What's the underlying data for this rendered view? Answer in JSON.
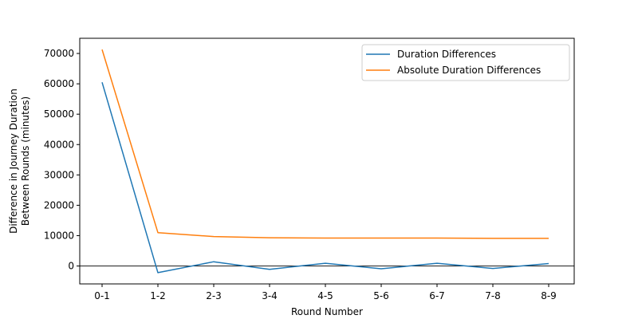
{
  "chart_data": {
    "type": "line",
    "categories": [
      "0-1",
      "1-2",
      "2-3",
      "3-4",
      "4-5",
      "5-6",
      "6-7",
      "7-8",
      "8-9"
    ],
    "series": [
      {
        "name": "Duration Differences",
        "color": "#1f77b4",
        "values": [
          60500,
          -2200,
          1400,
          -1100,
          900,
          -900,
          900,
          -800,
          800
        ]
      },
      {
        "name": "Absolute Duration Differences",
        "color": "#ff7f0e",
        "values": [
          71300,
          11000,
          9700,
          9300,
          9200,
          9200,
          9200,
          9100,
          9100
        ]
      }
    ],
    "xlabel": "Round Number",
    "ylabel_lines": [
      "Difference in Journey Duration",
      "Between Rounds (minutes)"
    ],
    "ylim": [
      -5900,
      75000
    ],
    "yticks": [
      0,
      10000,
      20000,
      30000,
      40000,
      50000,
      60000,
      70000
    ],
    "zero_line": true,
    "grid": false,
    "legend_position": "upper right"
  }
}
